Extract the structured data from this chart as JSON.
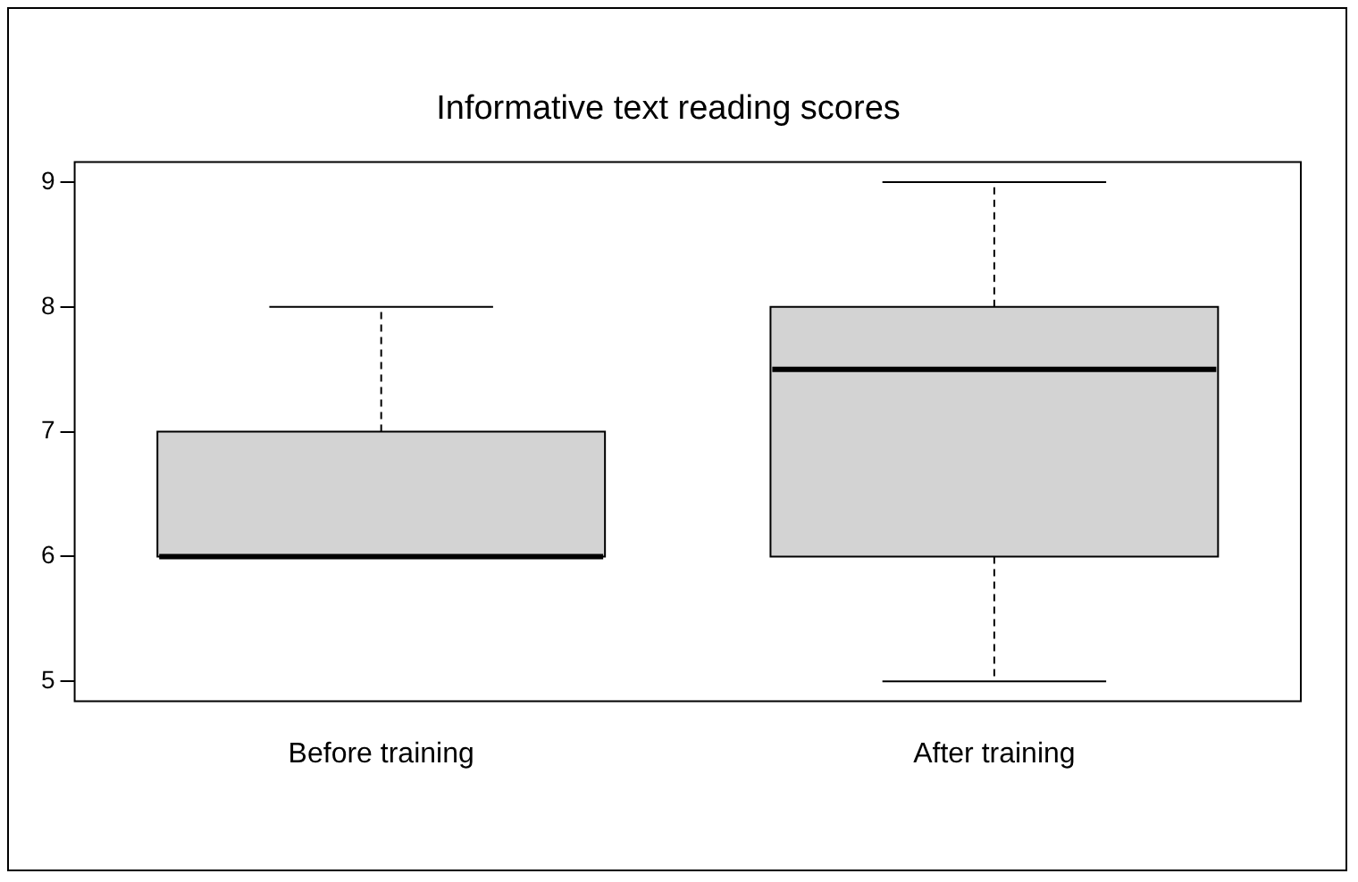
{
  "chart_data": {
    "type": "box",
    "title": "Informative text reading scores",
    "categories": [
      "Before training",
      "After training"
    ],
    "boxes": [
      {
        "low": 6,
        "q1": 6,
        "median": 6,
        "q3": 7,
        "high": 8
      },
      {
        "low": 5,
        "q1": 6,
        "median": 7.5,
        "q3": 8,
        "high": 9
      }
    ],
    "color": "#d3d3d3",
    "ylim": [
      4.84,
      9.16
    ],
    "yticks": [
      5,
      6,
      7,
      8,
      9
    ]
  }
}
